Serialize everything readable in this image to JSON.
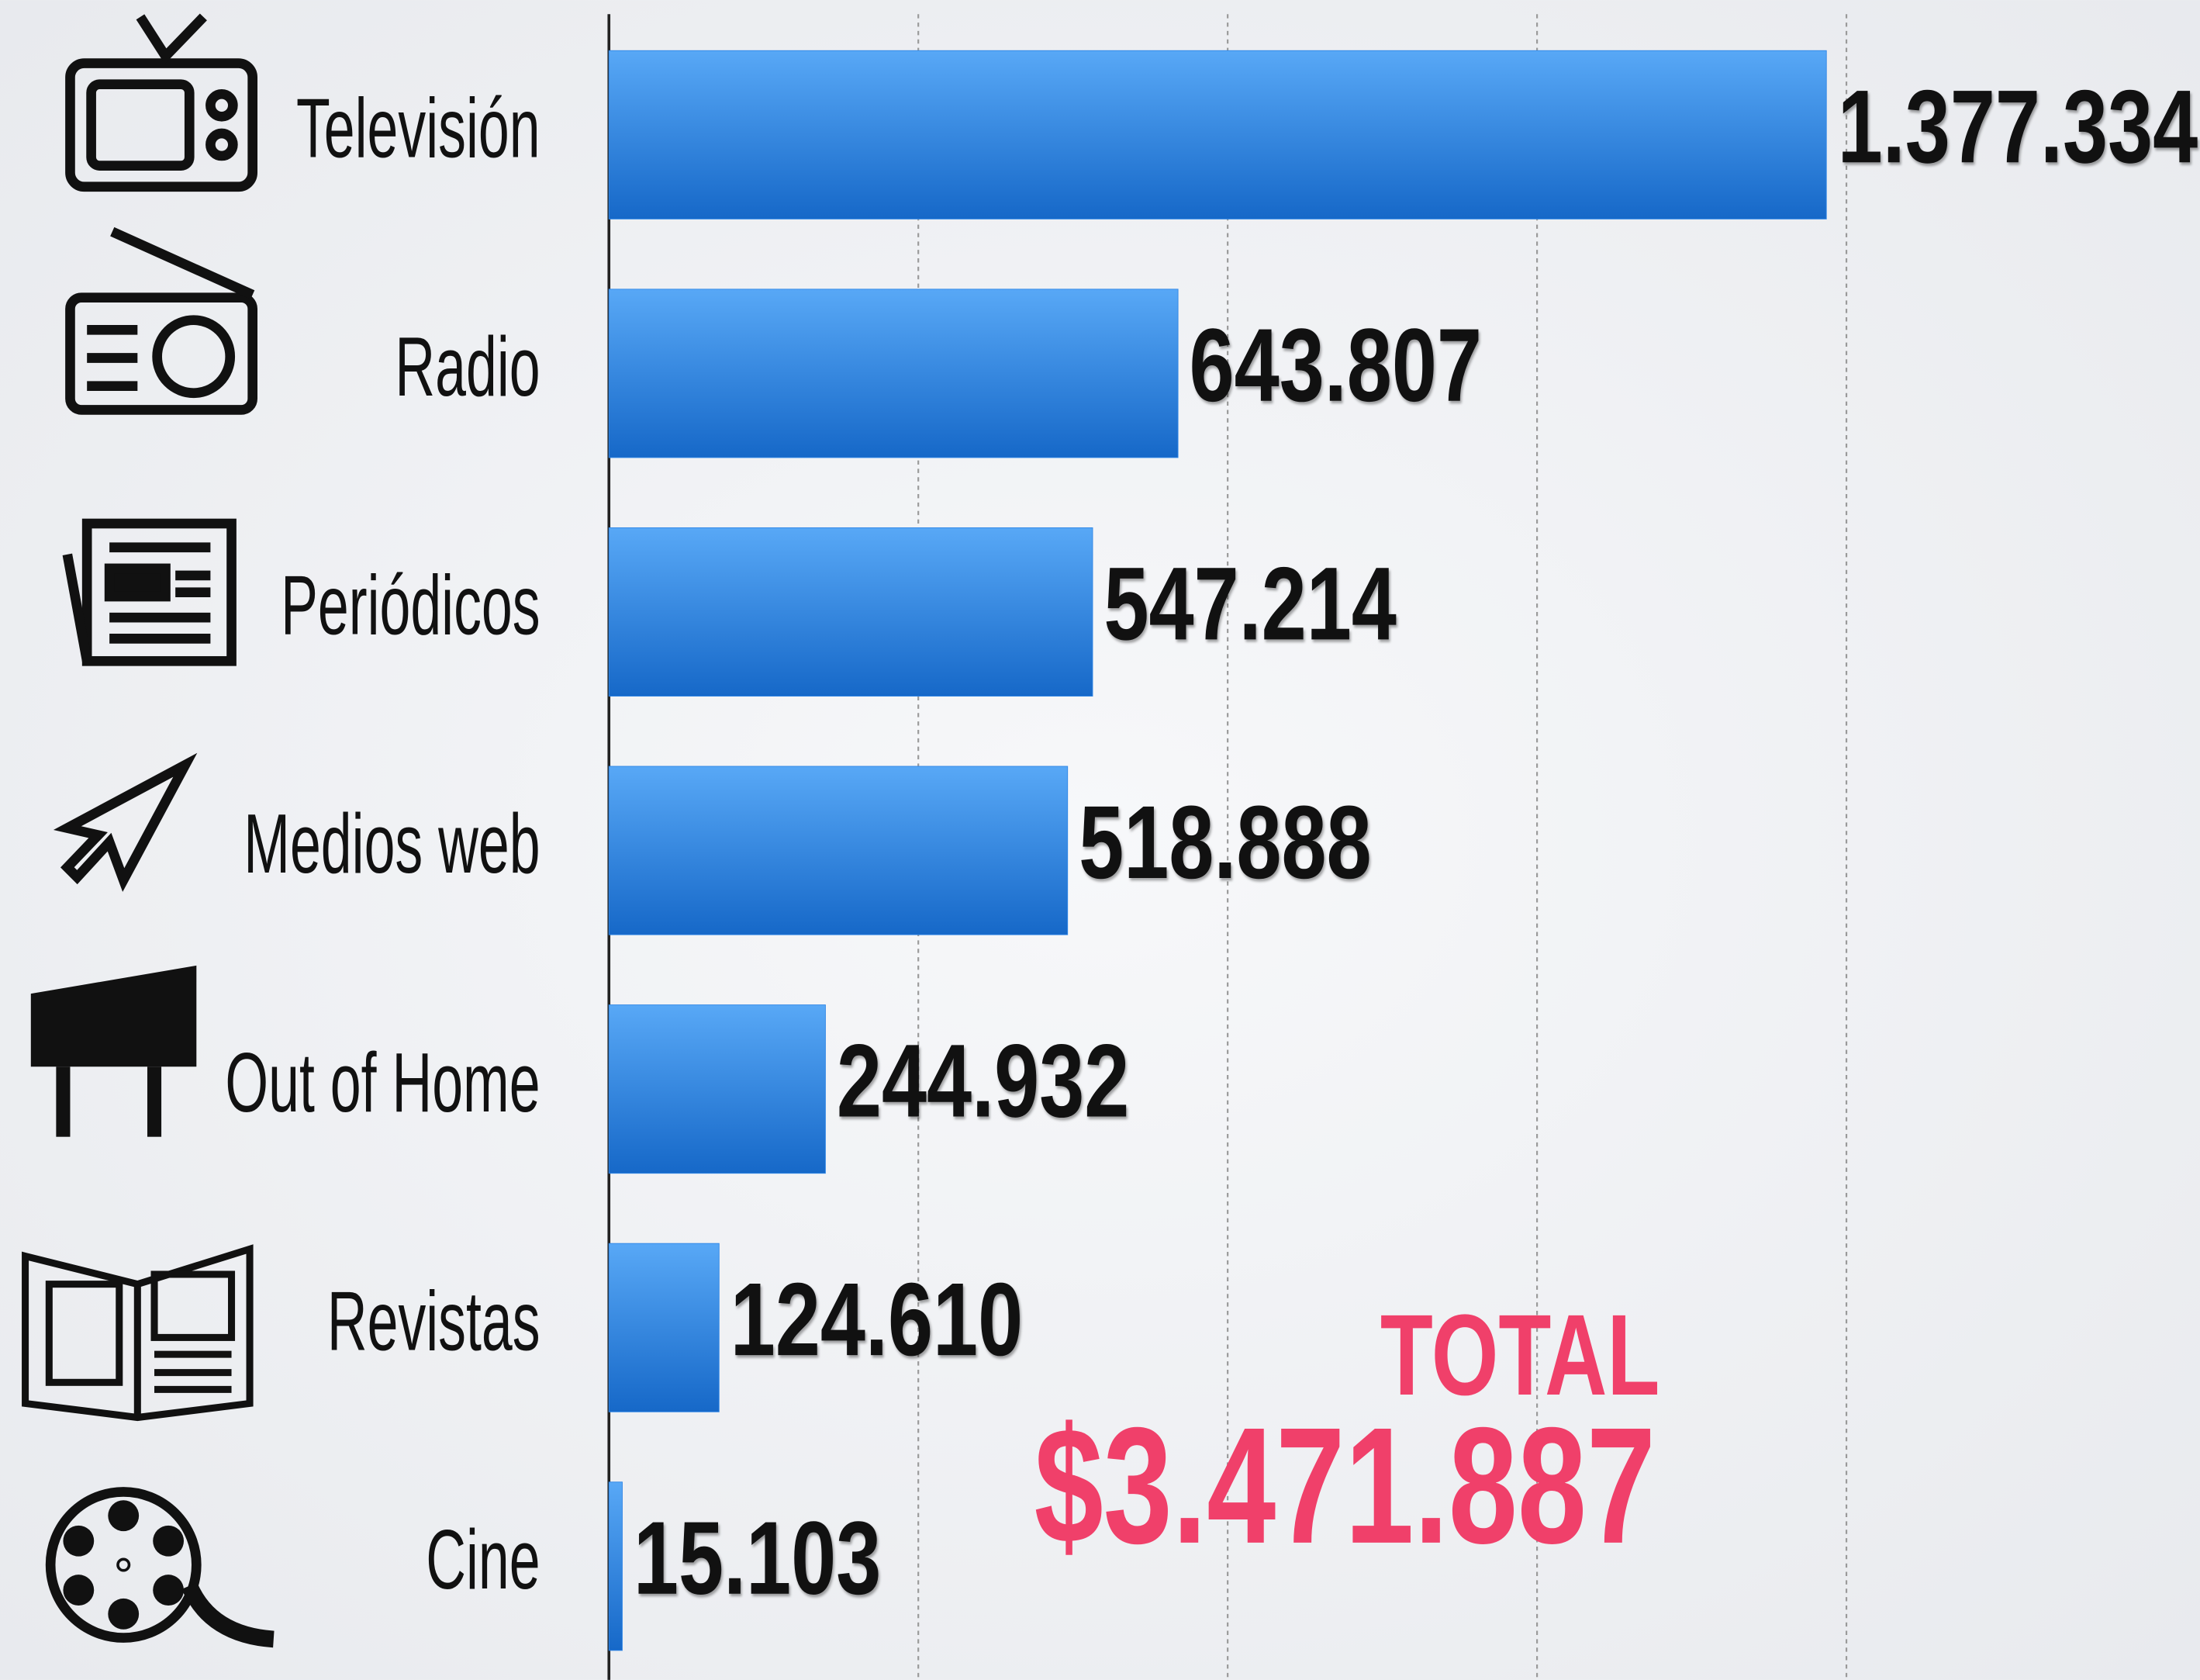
{
  "chart_data": {
    "type": "bar",
    "orientation": "horizontal",
    "categories": [
      "Televisión",
      "Radio",
      "Periódicos",
      "Medios web",
      "Out of Home",
      "Revistas",
      "Cine"
    ],
    "values": [
      1377334,
      643807,
      547214,
      518888,
      244932,
      124610,
      15103
    ],
    "value_labels": [
      "1.377.334",
      "643.807",
      "547.214",
      "518.888",
      "244.932",
      "124.610",
      "15.103"
    ],
    "color": "#2f86e6",
    "xlim": [
      0,
      1800000
    ],
    "xticks": [
      350000,
      700000,
      1050000,
      1400000
    ],
    "grid": true,
    "annotations": [
      "TOTAL",
      "$3.471.887"
    ]
  }
}
